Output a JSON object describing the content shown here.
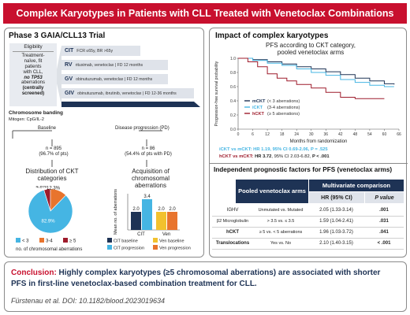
{
  "header": {
    "title": "Complex Karyotypes in Patients with CLL Treated with Venetoclax Combinations"
  },
  "left_panel": {
    "title": "Phase 3 GAIA/CLL13 Trial",
    "eligibility_label": "Eligibility",
    "eligibility_lines": [
      "Treatment-",
      "naïve, fit",
      "patients",
      "with CLL,",
      "no TP53",
      "aberrations",
      "(centrally",
      "screened)"
    ],
    "arms": [
      {
        "code": "CIT",
        "desc": "FCR ≤65y, BR >65y"
      },
      {
        "code": "RV",
        "desc": "rituximab, venetoclax | FD 12 months"
      },
      {
        "code": "GV",
        "desc": "obinutuzumab, venetoclax | FD 12 months"
      },
      {
        "code": "GIV",
        "desc": "obinutuzumab, ibrutinib, venetoclax | FD 12-36 months"
      }
    ],
    "banding_label": "Chromosome banding",
    "mitogen": "Mitogen: CpG/IL-2",
    "baseline_label": "Baseline",
    "pd_label": "Disease progression (PD)",
    "baseline_n": "n = 895",
    "baseline_pct": "(96.7% of pts)",
    "pd_n": "n = 86",
    "pd_pct": "(54.4% of pts with PD)",
    "distribution_title": "Distribution of CKT categories",
    "acquisition_title": "Acquisition of chromosomal aberrations"
  },
  "right_panel": {
    "title": "Impact of complex karyotypes",
    "hr_line1_a": "iCKT vs mCKT: HR 1.19, 95% CI 0.69-2.06, P = .525",
    "hr_line2_a": "hCKT vs mCKT: ",
    "hr_line2_b": "HR 3.72",
    "hr_line2_c": ", 95% CI 2.03-6.82, ",
    "hr_line2_d": "P < .001"
  },
  "table": {
    "title": "Independent prognostic factors for PFS (venetoclax arms)",
    "col1": "Pooled venetoclax arms",
    "col2": "Multivariate comparison",
    "sub_hr": "HR (95% CI)",
    "sub_p": "P value",
    "rows": [
      {
        "factor": "IGHV",
        "comparison": "Unmutated vs. Mutated",
        "hr": "2.05 (1.33-3.14)",
        "p": ".001",
        "bold": false
      },
      {
        "factor": "β2 Microglobulin",
        "comparison": "> 3.5 vs. ≤ 3.5",
        "hr": "1.59 (1.04-2.41)",
        "p": ".031",
        "bold": false
      },
      {
        "factor": "hCKT",
        "comparison": "≥ 5 vs. < 5 aberrations",
        "hr": "1.96 (1.03-3.72)",
        "p": ".041",
        "bold": true
      },
      {
        "factor": "Translocations",
        "comparison": "Yes vs. No",
        "hr": "2.10 (1.40-3.15)",
        "p": "< .001",
        "bold": true
      }
    ]
  },
  "conclusion": {
    "label": "Conclusion:",
    "text1": " Highly complex karyotypes (≥5 chromosomal aberrations) are associated with shorter",
    "text2": "PFS in first-line venetoclax-based combination treatment for CLL.",
    "citation": "Fürstenau et al. DOI: 10.1182/blood.2023019634"
  },
  "colors": {
    "red": "#c8102e",
    "navy": "#1e3355",
    "cyan": "#45b5e3",
    "orange": "#e8742d",
    "darkred": "#9e1b2b",
    "yellow": "#f2c12e"
  },
  "chart_data": [
    {
      "type": "pie",
      "title": "Distribution of CKT categories",
      "categories": [
        "< 3",
        "3-4",
        "≥ 5"
      ],
      "values": [
        82.9,
        12.3,
        4.8
      ],
      "labels": [
        "82.9%",
        "12.3%",
        "4.8%"
      ],
      "legend_caption": "no. of chromosomal aberrations",
      "colors": [
        "#45b5e3",
        "#e8742d",
        "#9e1b2b"
      ]
    },
    {
      "type": "bar",
      "title": "Acquisition of chromosomal aberrations",
      "categories": [
        "CIT",
        "Ven"
      ],
      "ylabel": "Mean no. of aberrations",
      "series": [
        {
          "name": "CIT baseline",
          "values": [
            2.0,
            null
          ],
          "color": "#1e3355"
        },
        {
          "name": "CIT progression",
          "values": [
            3.4,
            null
          ],
          "color": "#45b5e3"
        },
        {
          "name": "Ven baseline",
          "values": [
            null,
            2.0
          ],
          "color": "#f2c12e"
        },
        {
          "name": "Ven progression",
          "values": [
            null,
            2.0
          ],
          "color": "#e8742d"
        }
      ],
      "value_labels": [
        "2.0",
        "3.4",
        "2.0",
        "2.0"
      ],
      "ylim": [
        0,
        4
      ]
    },
    {
      "type": "line",
      "title": "PFS according to CKT category, pooled venetoclax arms",
      "xlabel": "Months from randomization",
      "ylabel": "Progression-free survival probability",
      "x_ticks": [
        "0",
        "6",
        "12",
        "18",
        "24",
        "30",
        "36",
        "42",
        "48",
        "54",
        "60",
        "66"
      ],
      "y_ticks": [
        "0.0",
        "0.2",
        "0.4",
        "0.6",
        "0.8",
        "1.0"
      ],
      "xlim": [
        0,
        66
      ],
      "ylim": [
        0,
        1
      ],
      "series": [
        {
          "name": "mCKT",
          "legend": "(< 3 aberrations)",
          "color": "#1e3355",
          "x": [
            0,
            6,
            12,
            18,
            24,
            30,
            36,
            42,
            48,
            54,
            60,
            64
          ],
          "y": [
            1.0,
            0.98,
            0.95,
            0.92,
            0.88,
            0.85,
            0.81,
            0.77,
            0.72,
            0.68,
            0.64,
            0.63
          ]
        },
        {
          "name": "iCKT",
          "legend": "(3-4 aberrations)",
          "color": "#45b5e3",
          "x": [
            0,
            6,
            12,
            18,
            24,
            30,
            36,
            42,
            48,
            54,
            60,
            64
          ],
          "y": [
            1.0,
            0.97,
            0.93,
            0.9,
            0.85,
            0.8,
            0.76,
            0.7,
            0.66,
            0.62,
            0.6,
            0.6
          ]
        },
        {
          "name": "hCKT",
          "legend": "(≥ 5 aberrations)",
          "color": "#9e1b2b",
          "x": [
            0,
            4,
            8,
            12,
            16,
            20,
            24,
            30,
            36,
            42,
            48,
            54,
            60
          ],
          "y": [
            1.0,
            0.95,
            0.88,
            0.78,
            0.72,
            0.68,
            0.63,
            0.58,
            0.52,
            0.45,
            0.43,
            0.43,
            0.43
          ]
        }
      ]
    }
  ]
}
